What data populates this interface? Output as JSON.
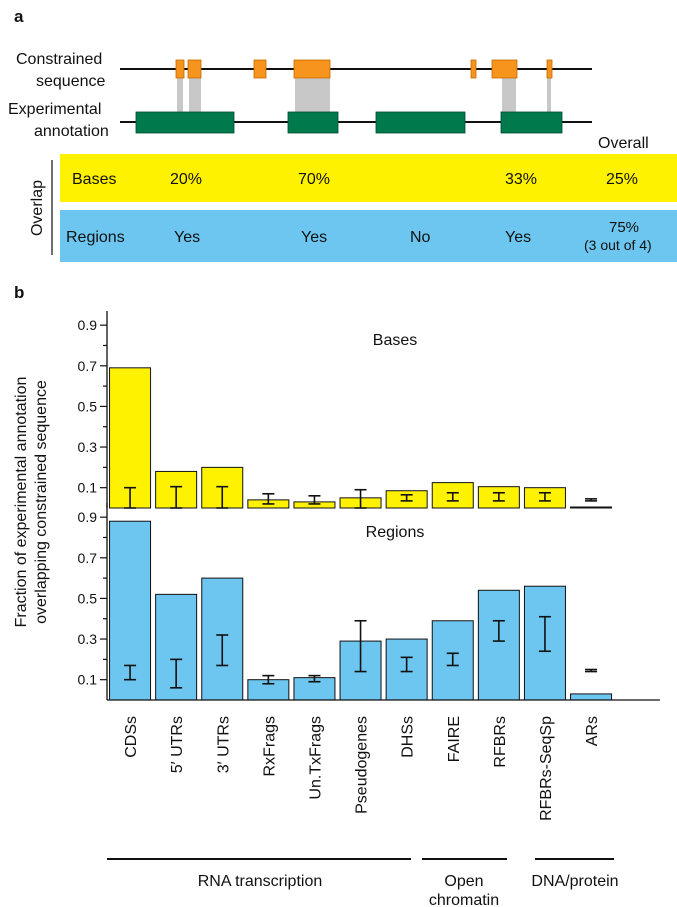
{
  "panel_a": {
    "label": "a",
    "row_labels": {
      "constrained_1": "Constrained",
      "constrained_2": "sequence",
      "experimental_1": "Experimental",
      "experimental_2": "annotation"
    },
    "overall_header": "Overall",
    "overlap_label": "Overlap",
    "bases_row": {
      "label": "Bases",
      "values": [
        "20%",
        "70%",
        "",
        "33%"
      ],
      "overall": "25%"
    },
    "regions_row": {
      "label": "Regions",
      "values": [
        "Yes",
        "Yes",
        "No",
        "Yes"
      ],
      "overall_1": "75%",
      "overall_2": "(3 out of 4)"
    },
    "colors": {
      "constrained": "#f7941d",
      "annotation": "#007a4d",
      "overlap": "#c8c8c8",
      "bases_band": "#fff200",
      "regions_band": "#6cc6ef"
    }
  },
  "panel_b": {
    "label": "b",
    "ylabel_1": "Fraction of experimental annotation",
    "ylabel_2": "overlapping constrained sequence",
    "group_labels": {
      "rna": "RNA transcription",
      "open_1": "Open",
      "open_2": "chromatin",
      "dna": "DNA/protein"
    }
  },
  "chart_data": [
    {
      "type": "bar",
      "title": "Bases",
      "categories": [
        "CDSs",
        "5′ UTRs",
        "3′ UTRs",
        "RxFrags",
        "Un.TxFrags",
        "Pseudogenes",
        "DHSs",
        "FAIRE",
        "RFBRs",
        "RFBRs-SeqSp",
        "ARs"
      ],
      "values": [
        0.69,
        0.18,
        0.2,
        0.04,
        0.03,
        0.05,
        0.085,
        0.125,
        0.105,
        0.1,
        0.005
      ],
      "error_low": [
        0.0,
        0.0,
        0.0,
        0.02,
        0.02,
        0.0,
        0.035,
        0.035,
        0.035,
        0.035,
        0.035
      ],
      "error_high": [
        0.1,
        0.105,
        0.105,
        0.07,
        0.06,
        0.09,
        0.065,
        0.075,
        0.075,
        0.075,
        0.045
      ],
      "yticks": [
        "0.9",
        "0.7",
        "0.5",
        "0.3",
        "0.1"
      ],
      "ylim": [
        0,
        0.95
      ],
      "color": "#fff200"
    },
    {
      "type": "bar",
      "title": "Regions",
      "categories": [
        "CDSs",
        "5′ UTRs",
        "3′ UTRs",
        "RxFrags",
        "Un.TxFrags",
        "Pseudogenes",
        "DHSs",
        "FAIRE",
        "RFBRs",
        "RFBRs-SeqSp",
        "ARs"
      ],
      "values": [
        0.88,
        0.52,
        0.6,
        0.1,
        0.11,
        0.29,
        0.3,
        0.39,
        0.54,
        0.56,
        0.03
      ],
      "error_low": [
        0.1,
        0.06,
        0.17,
        0.08,
        0.09,
        0.14,
        0.14,
        0.17,
        0.29,
        0.24,
        0.14
      ],
      "error_high": [
        0.17,
        0.2,
        0.32,
        0.12,
        0.12,
        0.39,
        0.21,
        0.23,
        0.39,
        0.41,
        0.15
      ],
      "yticks": [
        "0.9",
        "0.7",
        "0.5",
        "0.3",
        "0.1"
      ],
      "ylim": [
        0,
        0.95
      ],
      "color": "#6cc6ef"
    }
  ]
}
